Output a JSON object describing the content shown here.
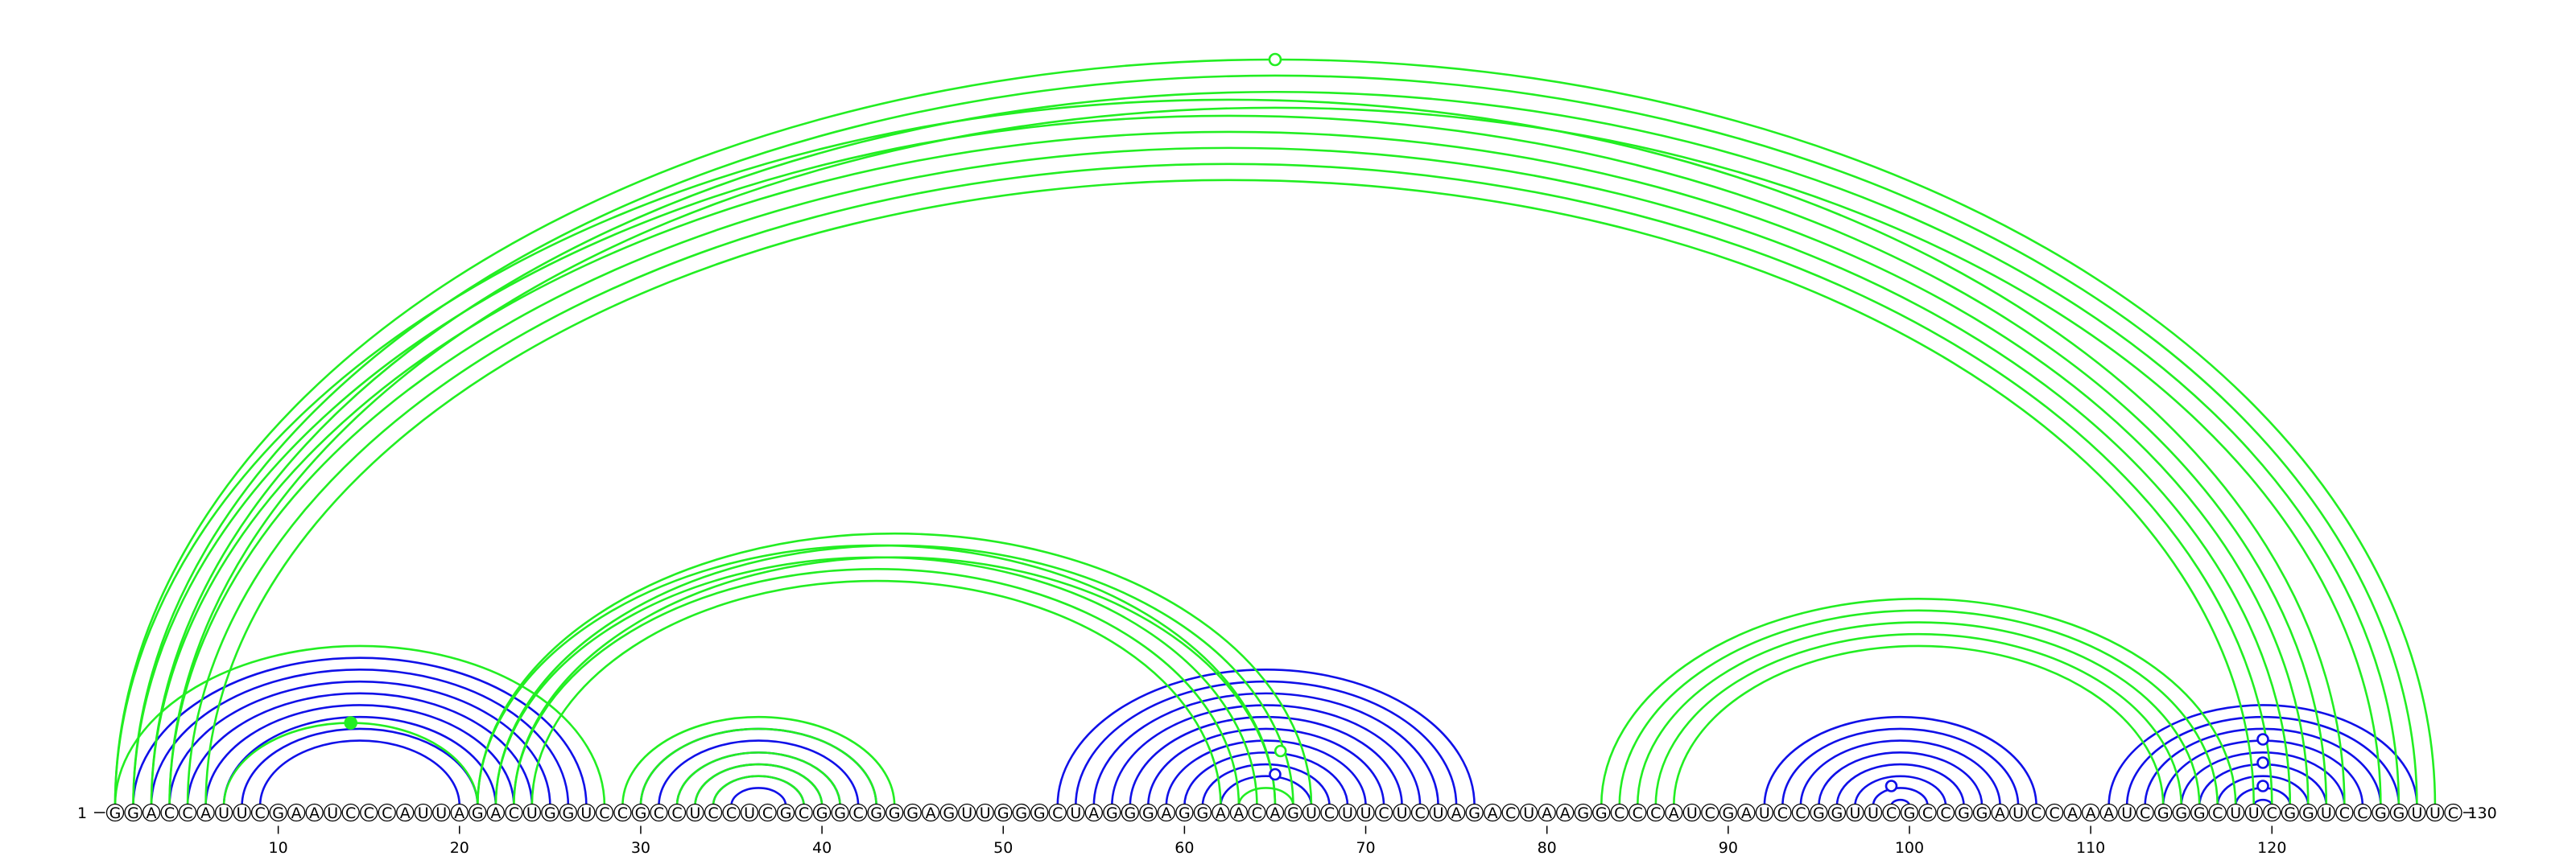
{
  "diagram": {
    "type": "rna-arc-diagram",
    "sequence": "GGACCAUUCGAAUCCCAUUAGACUGGUCCGCCUCCUCGCGGCGGGAGUUGGGCUAGGGAGGAACAGUCUUCUCUAGACUAAGGCCCAUCGAUCCGGUUCGCCGGAUCCAAAUCGGGCUUCGGUCCGGUUC",
    "start_label": "1",
    "end_label": "130",
    "ticks": [
      10,
      20,
      30,
      40,
      50,
      60,
      70,
      80,
      90,
      100,
      110,
      120
    ],
    "colors": {
      "blue": "#1010e8",
      "green": "#22ee22",
      "black": "#000000"
    },
    "arc_groups": [
      {
        "color": "blue",
        "pairs": [
          [
            2,
            27
          ],
          [
            3,
            26
          ],
          [
            4,
            25
          ],
          [
            5,
            24
          ],
          [
            6,
            23
          ],
          [
            7,
            22
          ],
          [
            8,
            21
          ],
          [
            9,
            20
          ]
        ]
      },
      {
        "color": "green",
        "pairs": [
          [
            1,
            28
          ],
          [
            7,
            21
          ]
        ],
        "marker": {
          "type": "filled",
          "arc": 1
        }
      },
      {
        "color": "blue",
        "pairs": [
          [
            30,
            43
          ],
          [
            31,
            42
          ],
          [
            32,
            41
          ],
          [
            33,
            40
          ],
          [
            34,
            39
          ],
          [
            35,
            38
          ]
        ]
      },
      {
        "color": "green",
        "pairs": [
          [
            29,
            44
          ],
          [
            30,
            43
          ],
          [
            32,
            41
          ],
          [
            33,
            40
          ],
          [
            34,
            39
          ]
        ]
      },
      {
        "color": "blue",
        "pairs": [
          [
            53,
            76
          ],
          [
            54,
            75
          ],
          [
            55,
            74
          ],
          [
            56,
            73
          ],
          [
            57,
            72
          ],
          [
            58,
            71
          ],
          [
            59,
            70
          ],
          [
            60,
            69
          ],
          [
            61,
            68
          ],
          [
            62,
            67
          ]
        ]
      },
      {
        "color": "green",
        "pairs": [
          [
            63,
            66
          ]
        ]
      },
      {
        "color": "blue",
        "pairs": [
          [
            92,
            107
          ],
          [
            93,
            106
          ],
          [
            94,
            105
          ],
          [
            95,
            104
          ],
          [
            96,
            103
          ],
          [
            97,
            102
          ],
          [
            98,
            101
          ],
          [
            99,
            100
          ]
        ]
      },
      {
        "color": "blue",
        "pairs": [
          [
            111,
            128
          ],
          [
            112,
            127
          ],
          [
            113,
            126
          ],
          [
            114,
            125
          ],
          [
            115,
            124
          ],
          [
            116,
            123
          ],
          [
            117,
            122
          ],
          [
            118,
            121
          ],
          [
            119,
            120
          ]
        ]
      },
      {
        "color": "green",
        "pairs": [
          [
            1,
            124
          ],
          [
            2,
            123
          ],
          [
            3,
            122
          ],
          [
            4,
            121
          ],
          [
            5,
            120
          ],
          [
            6,
            119
          ]
        ]
      },
      {
        "color": "green",
        "pairs": [
          [
            1,
            129
          ],
          [
            2,
            128
          ],
          [
            3,
            127
          ],
          [
            4,
            126
          ]
        ],
        "marker": {
          "type": "hollow",
          "arc": 0
        }
      },
      {
        "color": "green",
        "pairs": [
          [
            21,
            65
          ],
          [
            22,
            64
          ],
          [
            23,
            63
          ],
          [
            24,
            62
          ]
        ]
      },
      {
        "color": "green",
        "pairs": [
          [
            21,
            67
          ],
          [
            22,
            66
          ],
          [
            23,
            65
          ]
        ]
      },
      {
        "color": "green",
        "pairs": [
          [
            83,
            118
          ],
          [
            84,
            117
          ],
          [
            85,
            116
          ],
          [
            86,
            115
          ],
          [
            87,
            114
          ]
        ]
      }
    ],
    "markers": [
      {
        "pos": 65.3,
        "level": 4,
        "color": "green",
        "type": "hollow"
      },
      {
        "pos": 65.0,
        "level": 2,
        "color": "blue",
        "type": "hollow"
      },
      {
        "pos": 99.0,
        "level": 1,
        "color": "blue",
        "type": "hollow"
      },
      {
        "pos": 119.5,
        "level": 1,
        "color": "blue",
        "type": "hollow"
      },
      {
        "pos": 119.5,
        "level": 3,
        "color": "blue",
        "type": "hollow"
      },
      {
        "pos": 119.5,
        "level": 5,
        "color": "blue",
        "type": "hollow"
      }
    ]
  }
}
